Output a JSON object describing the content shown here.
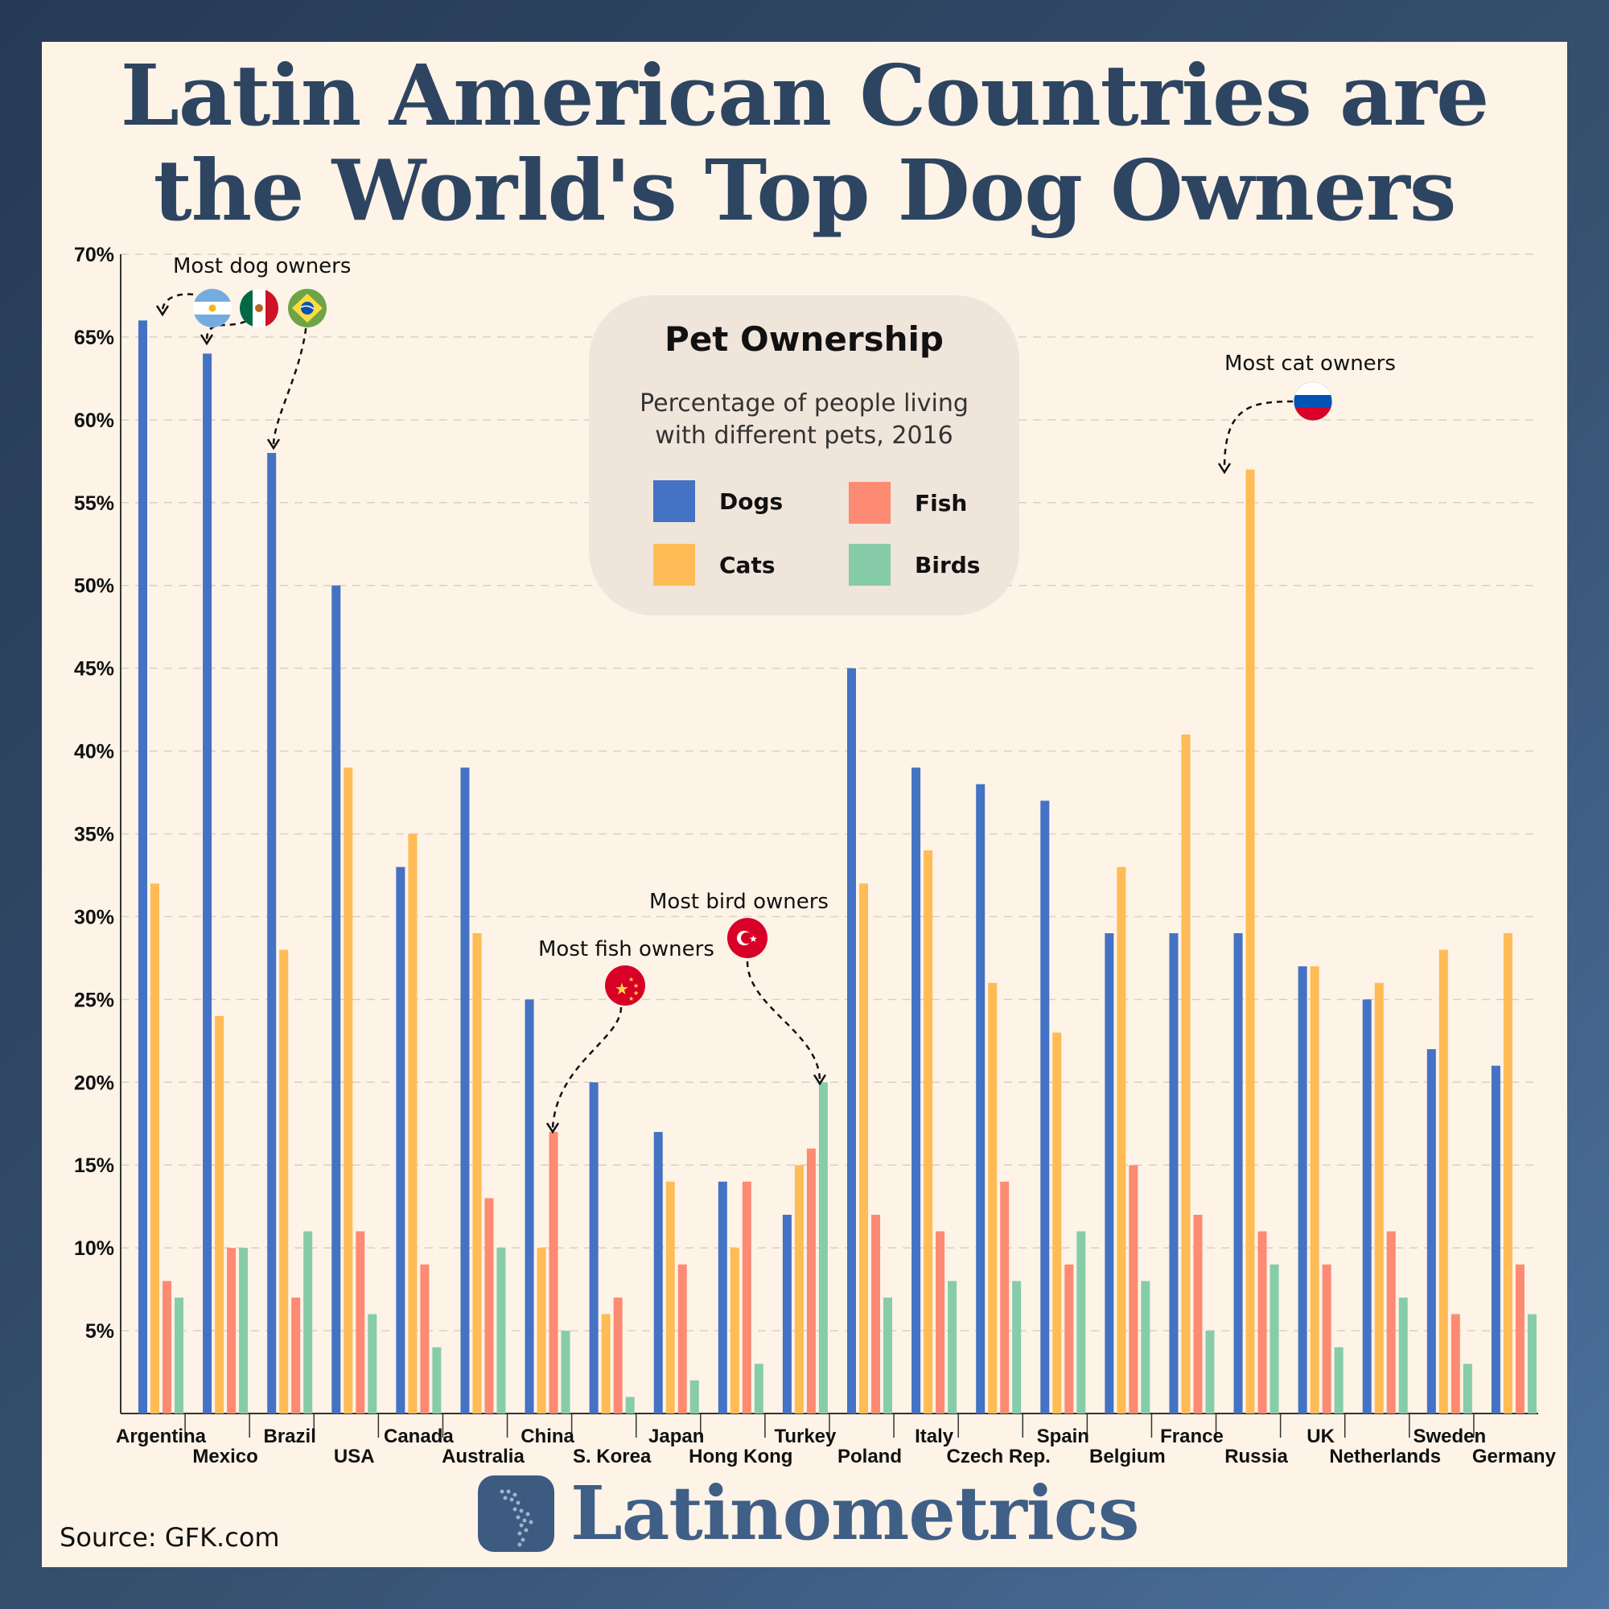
{
  "title_lines": [
    "Latin American Countries are",
    "the World's Top Dog Owners"
  ],
  "legend": {
    "title": "Pet Ownership",
    "subtitle_lines": [
      "Percentage of people living",
      "with different pets, 2016"
    ]
  },
  "annotations": {
    "dog": "Most dog owners",
    "cat": "Most cat owners",
    "fish": "Most fish owners",
    "bird": "Most bird owners"
  },
  "source": "Source: GFK.com",
  "brand": "Latinometrics",
  "colors": {
    "Dogs": "#4472c4",
    "Cats": "#ffbb55",
    "Fish": "#fd8a72",
    "Birds": "#87cca8"
  },
  "flags": [
    "argentina-flag-icon",
    "mexico-flag-icon",
    "brazil-flag-icon",
    "russia-flag-icon",
    "china-flag-icon",
    "turkey-flag-icon"
  ],
  "chart_data": {
    "type": "bar",
    "ylim": [
      0,
      70
    ],
    "yticks": [
      "5%",
      "10%",
      "15%",
      "20%",
      "25%",
      "30%",
      "35%",
      "40%",
      "45%",
      "50%",
      "55%",
      "60%",
      "65%",
      "70%"
    ],
    "grid": true,
    "categories": [
      "Argentina",
      "Mexico",
      "Brazil",
      "USA",
      "Canada",
      "Australia",
      "China",
      "S. Korea",
      "Japan",
      "Hong Kong",
      "Turkey",
      "Poland",
      "Italy",
      "Czech Rep.",
      "Spain",
      "Belgium",
      "France",
      "Russia",
      "UK",
      "Netherlands",
      "Sweden",
      "Germany"
    ],
    "series": [
      {
        "name": "Dogs",
        "values": [
          66,
          64,
          58,
          50,
          33,
          39,
          25,
          20,
          17,
          14,
          12,
          45,
          39,
          38,
          37,
          29,
          29,
          29,
          27,
          25,
          22,
          21
        ]
      },
      {
        "name": "Cats",
        "values": [
          32,
          24,
          28,
          39,
          35,
          29,
          10,
          6,
          14,
          10,
          15,
          32,
          34,
          26,
          23,
          33,
          41,
          57,
          27,
          26,
          28,
          29
        ]
      },
      {
        "name": "Fish",
        "values": [
          8,
          10,
          7,
          11,
          9,
          13,
          17,
          7,
          9,
          14,
          16,
          12,
          11,
          14,
          9,
          15,
          12,
          11,
          9,
          11,
          6,
          9
        ]
      },
      {
        "name": "Birds",
        "values": [
          7,
          10,
          11,
          6,
          4,
          10,
          5,
          1,
          2,
          3,
          20,
          7,
          8,
          8,
          11,
          8,
          5,
          9,
          4,
          7,
          3,
          6
        ]
      }
    ]
  }
}
